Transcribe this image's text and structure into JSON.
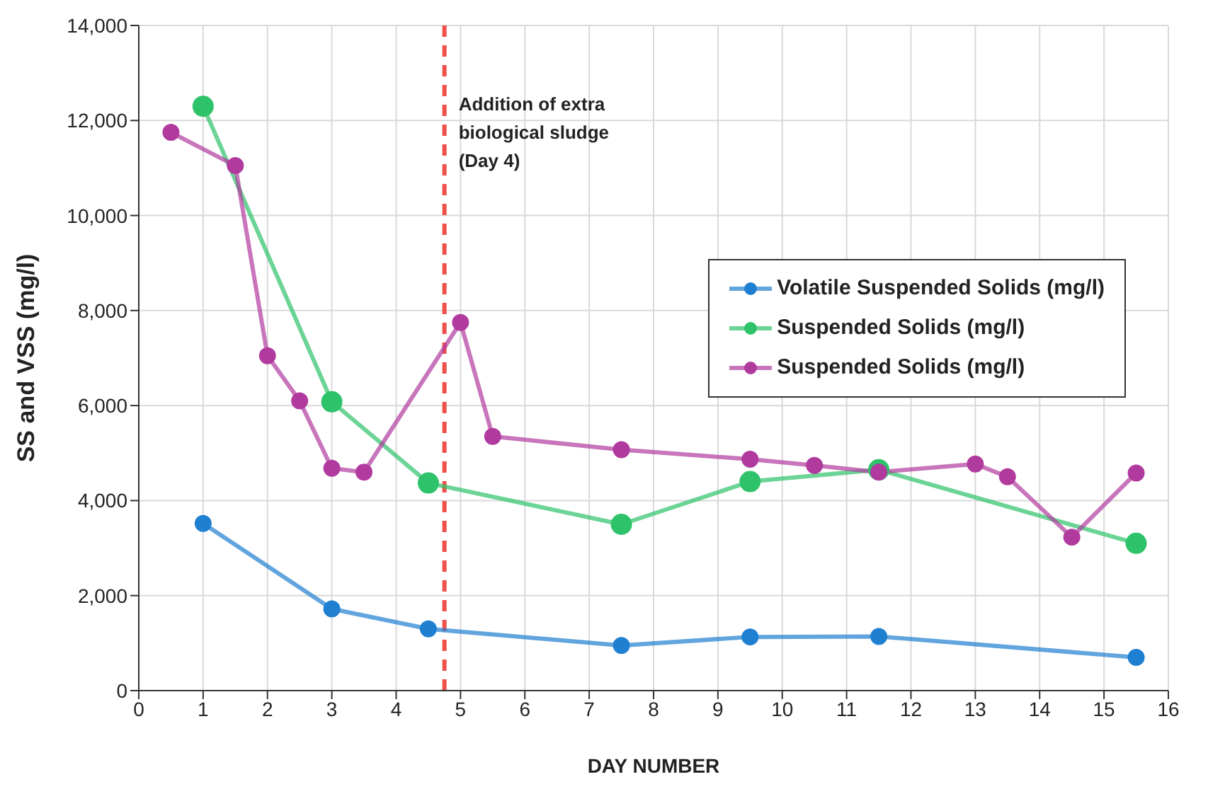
{
  "chart_data": {
    "type": "line",
    "xlabel": "DAY NUMBER",
    "ylabel": "SS and VSS (mg/l)",
    "xlim": [
      0,
      16
    ],
    "xticks": [
      0,
      1,
      2,
      3,
      4,
      5,
      6,
      7,
      8,
      9,
      10,
      11,
      12,
      13,
      14,
      15,
      16
    ],
    "ylim": [
      0,
      14000
    ],
    "yticks": [
      {
        "value": 0,
        "label": "0"
      },
      {
        "value": 2000,
        "label": "2,000"
      },
      {
        "value": 4000,
        "label": "4,000"
      },
      {
        "value": 6000,
        "label": "6,000"
      },
      {
        "value": 8000,
        "label": "8,000"
      },
      {
        "value": 10000,
        "label": "10,000"
      },
      {
        "value": 12000,
        "label": "12,000"
      },
      {
        "value": 14000,
        "label": "14,000"
      }
    ],
    "grid": true,
    "legend": "right",
    "marker": "circle",
    "line_style": "solid",
    "ref_lines": [
      {
        "axis": "x",
        "value": 4.75,
        "label": "Addition of extra biological sludge (Day 4)",
        "color": "#f0504a",
        "line_style": "dashed"
      }
    ],
    "series": [
      {
        "name": "Volatile Suspended Solids (mg/l)",
        "color": "#1f7fd0",
        "x": [
          1,
          3,
          4.5,
          7.5,
          9.5,
          11.5,
          15.5
        ],
        "values": [
          3520,
          1720,
          1300,
          950,
          1130,
          1140,
          700
        ]
      },
      {
        "name": "Suspended Solids (mg/l)",
        "color": "#2ec26a",
        "x": [
          1,
          3,
          4.5,
          7.5,
          9.5,
          11.5,
          15.5
        ],
        "values": [
          12300,
          6080,
          4370,
          3500,
          4400,
          4650,
          3100
        ]
      },
      {
        "name": "Suspended Solids (mg/l)",
        "color": "#b03a9e",
        "x": [
          0.5,
          1.5,
          2,
          2.5,
          3,
          3.5,
          5,
          5.5,
          7.5,
          9.5,
          10.5,
          11.5,
          13,
          13.5,
          14.5,
          15.5
        ],
        "values": [
          11750,
          11050,
          7050,
          6100,
          4680,
          4600,
          7750,
          5350,
          5070,
          4870,
          4740,
          4600,
          4770,
          4500,
          3230,
          4580
        ]
      }
    ]
  }
}
